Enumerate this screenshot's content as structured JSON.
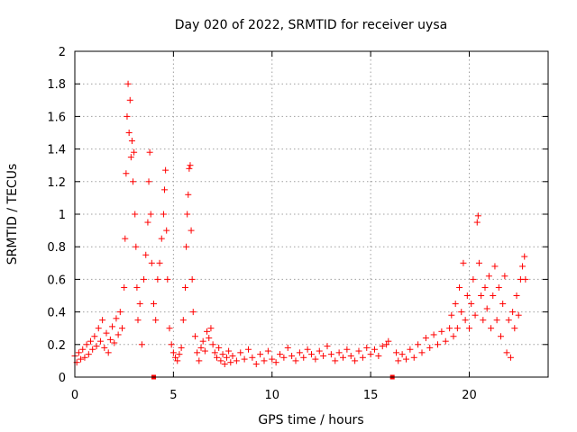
{
  "chart_data": {
    "type": "scatter",
    "title": "Day 020 of 2022, SRMTID for receiver uysa",
    "xlabel": "GPS time / hours",
    "ylabel": "SRMTID / TECUs",
    "xlim": [
      0,
      24
    ],
    "ylim": [
      0,
      2
    ],
    "grid": true,
    "marker": "+",
    "color": "#ff0000",
    "xticks": [
      0,
      5,
      10,
      15,
      20
    ],
    "xtick_labels": [
      "0",
      "5",
      "10",
      "15",
      "20"
    ],
    "yticks": [
      0,
      0.2,
      0.4,
      0.6,
      0.8,
      1.0,
      1.2,
      1.4,
      1.6,
      1.8,
      2.0
    ],
    "ytick_labels": [
      "0",
      "0.2",
      "0.4",
      "0.6",
      "0.8",
      "1",
      "1.2",
      "1.4",
      "1.6",
      "1.8",
      "2"
    ],
    "gap_markers": {
      "x": [
        4.0,
        16.1
      ],
      "y": 0
    },
    "series": [
      {
        "name": "SRMTID",
        "points": [
          [
            0.0,
            0.13
          ],
          [
            0.1,
            0.09
          ],
          [
            0.2,
            0.15
          ],
          [
            0.3,
            0.11
          ],
          [
            0.4,
            0.17
          ],
          [
            0.5,
            0.12
          ],
          [
            0.6,
            0.2
          ],
          [
            0.7,
            0.14
          ],
          [
            0.8,
            0.22
          ],
          [
            0.9,
            0.17
          ],
          [
            1.0,
            0.25
          ],
          [
            1.1,
            0.19
          ],
          [
            1.2,
            0.3
          ],
          [
            1.3,
            0.22
          ],
          [
            1.4,
            0.35
          ],
          [
            1.5,
            0.18
          ],
          [
            1.6,
            0.27
          ],
          [
            1.7,
            0.15
          ],
          [
            1.8,
            0.23
          ],
          [
            1.9,
            0.31
          ],
          [
            2.0,
            0.21
          ],
          [
            2.1,
            0.36
          ],
          [
            2.2,
            0.26
          ],
          [
            2.3,
            0.4
          ],
          [
            2.4,
            0.3
          ],
          [
            2.5,
            0.55
          ],
          [
            2.55,
            0.85
          ],
          [
            2.6,
            1.25
          ],
          [
            2.65,
            1.6
          ],
          [
            2.7,
            1.8
          ],
          [
            2.75,
            1.5
          ],
          [
            2.8,
            1.7
          ],
          [
            2.85,
            1.35
          ],
          [
            2.9,
            1.45
          ],
          [
            2.95,
            1.2
          ],
          [
            3.0,
            1.38
          ],
          [
            3.05,
            1.0
          ],
          [
            3.1,
            0.8
          ],
          [
            3.15,
            0.55
          ],
          [
            3.2,
            0.35
          ],
          [
            3.3,
            0.45
          ],
          [
            3.4,
            0.2
          ],
          [
            3.5,
            0.6
          ],
          [
            3.6,
            0.75
          ],
          [
            3.7,
            0.95
          ],
          [
            3.75,
            1.2
          ],
          [
            3.8,
            1.38
          ],
          [
            3.85,
            1.0
          ],
          [
            3.9,
            0.7
          ],
          [
            4.0,
            0.45
          ],
          [
            4.1,
            0.35
          ],
          [
            4.2,
            0.6
          ],
          [
            4.3,
            0.7
          ],
          [
            4.4,
            0.85
          ],
          [
            4.5,
            1.0
          ],
          [
            4.55,
            1.15
          ],
          [
            4.6,
            1.27
          ],
          [
            4.65,
            0.9
          ],
          [
            4.7,
            0.6
          ],
          [
            4.8,
            0.3
          ],
          [
            4.9,
            0.2
          ],
          [
            5.0,
            0.15
          ],
          [
            5.1,
            0.12
          ],
          [
            5.2,
            0.1
          ],
          [
            5.3,
            0.14
          ],
          [
            5.4,
            0.18
          ],
          [
            5.5,
            0.35
          ],
          [
            5.6,
            0.55
          ],
          [
            5.65,
            0.8
          ],
          [
            5.7,
            1.0
          ],
          [
            5.75,
            1.12
          ],
          [
            5.8,
            1.28
          ],
          [
            5.85,
            1.3
          ],
          [
            5.9,
            0.9
          ],
          [
            5.95,
            0.6
          ],
          [
            6.0,
            0.4
          ],
          [
            6.1,
            0.25
          ],
          [
            6.2,
            0.15
          ],
          [
            6.3,
            0.1
          ],
          [
            6.4,
            0.18
          ],
          [
            6.5,
            0.22
          ],
          [
            6.6,
            0.16
          ],
          [
            6.7,
            0.28
          ],
          [
            6.8,
            0.24
          ],
          [
            6.9,
            0.3
          ],
          [
            7.0,
            0.2
          ],
          [
            7.1,
            0.15
          ],
          [
            7.2,
            0.12
          ],
          [
            7.3,
            0.18
          ],
          [
            7.4,
            0.1
          ],
          [
            7.5,
            0.14
          ],
          [
            7.6,
            0.08
          ],
          [
            7.7,
            0.12
          ],
          [
            7.8,
            0.16
          ],
          [
            7.9,
            0.09
          ],
          [
            8.0,
            0.13
          ],
          [
            8.2,
            0.1
          ],
          [
            8.4,
            0.15
          ],
          [
            8.6,
            0.11
          ],
          [
            8.8,
            0.17
          ],
          [
            9.0,
            0.12
          ],
          [
            9.2,
            0.08
          ],
          [
            9.4,
            0.14
          ],
          [
            9.6,
            0.1
          ],
          [
            9.8,
            0.16
          ],
          [
            10.0,
            0.11
          ],
          [
            10.2,
            0.09
          ],
          [
            10.4,
            0.14
          ],
          [
            10.6,
            0.12
          ],
          [
            10.8,
            0.18
          ],
          [
            11.0,
            0.13
          ],
          [
            11.2,
            0.1
          ],
          [
            11.4,
            0.15
          ],
          [
            11.6,
            0.12
          ],
          [
            11.8,
            0.17
          ],
          [
            12.0,
            0.14
          ],
          [
            12.2,
            0.11
          ],
          [
            12.4,
            0.16
          ],
          [
            12.6,
            0.13
          ],
          [
            12.8,
            0.19
          ],
          [
            13.0,
            0.14
          ],
          [
            13.2,
            0.1
          ],
          [
            13.4,
            0.15
          ],
          [
            13.6,
            0.12
          ],
          [
            13.8,
            0.17
          ],
          [
            14.0,
            0.13
          ],
          [
            14.2,
            0.1
          ],
          [
            14.4,
            0.16
          ],
          [
            14.6,
            0.12
          ],
          [
            14.8,
            0.18
          ],
          [
            15.0,
            0.14
          ],
          [
            15.2,
            0.17
          ],
          [
            15.4,
            0.13
          ],
          [
            15.6,
            0.19
          ],
          [
            15.8,
            0.2
          ],
          [
            15.9,
            0.22
          ],
          [
            16.3,
            0.15
          ],
          [
            16.4,
            0.1
          ],
          [
            16.6,
            0.14
          ],
          [
            16.8,
            0.11
          ],
          [
            17.0,
            0.17
          ],
          [
            17.2,
            0.12
          ],
          [
            17.4,
            0.2
          ],
          [
            17.6,
            0.15
          ],
          [
            17.8,
            0.24
          ],
          [
            18.0,
            0.18
          ],
          [
            18.2,
            0.26
          ],
          [
            18.4,
            0.2
          ],
          [
            18.6,
            0.28
          ],
          [
            18.8,
            0.22
          ],
          [
            19.0,
            0.3
          ],
          [
            19.1,
            0.38
          ],
          [
            19.2,
            0.25
          ],
          [
            19.3,
            0.45
          ],
          [
            19.4,
            0.3
          ],
          [
            19.5,
            0.55
          ],
          [
            19.6,
            0.4
          ],
          [
            19.7,
            0.7
          ],
          [
            19.8,
            0.35
          ],
          [
            19.9,
            0.5
          ],
          [
            20.0,
            0.3
          ],
          [
            20.1,
            0.45
          ],
          [
            20.2,
            0.6
          ],
          [
            20.3,
            0.38
          ],
          [
            20.4,
            0.95
          ],
          [
            20.45,
            0.99
          ],
          [
            20.5,
            0.7
          ],
          [
            20.6,
            0.5
          ],
          [
            20.7,
            0.35
          ],
          [
            20.8,
            0.55
          ],
          [
            20.9,
            0.42
          ],
          [
            21.0,
            0.62
          ],
          [
            21.1,
            0.3
          ],
          [
            21.2,
            0.5
          ],
          [
            21.3,
            0.68
          ],
          [
            21.4,
            0.35
          ],
          [
            21.5,
            0.55
          ],
          [
            21.6,
            0.25
          ],
          [
            21.7,
            0.45
          ],
          [
            21.8,
            0.62
          ],
          [
            21.9,
            0.15
          ],
          [
            22.0,
            0.35
          ],
          [
            22.1,
            0.12
          ],
          [
            22.2,
            0.4
          ],
          [
            22.3,
            0.3
          ],
          [
            22.4,
            0.5
          ],
          [
            22.5,
            0.38
          ],
          [
            22.6,
            0.6
          ],
          [
            22.7,
            0.68
          ],
          [
            22.8,
            0.74
          ],
          [
            22.85,
            0.6
          ]
        ]
      }
    ]
  }
}
